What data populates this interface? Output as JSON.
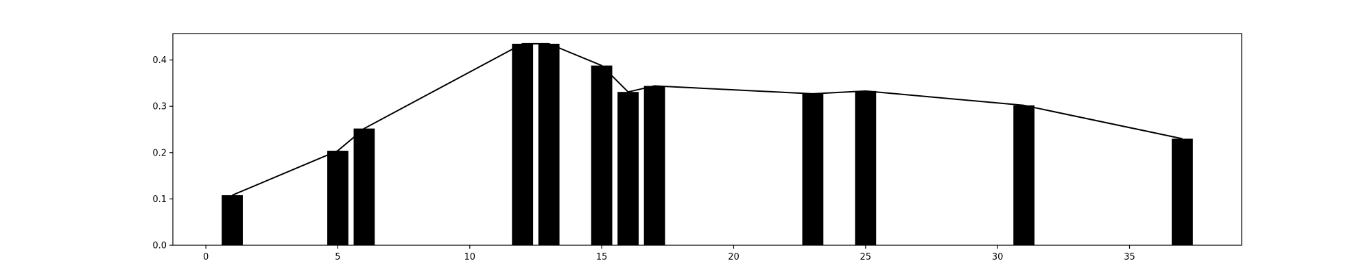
{
  "chart_data": {
    "type": "bar",
    "title": "",
    "xlabel": "",
    "ylabel": "",
    "xlim": [
      -1.25,
      39.25
    ],
    "ylim": [
      0,
      0.457
    ],
    "grid": false,
    "legend": "none",
    "bar_color": "#000000",
    "line_color": "#000000",
    "bar_width": 0.8,
    "x": [
      1,
      5,
      6,
      12,
      13,
      15,
      16,
      17,
      23,
      25,
      31,
      37
    ],
    "values": [
      0.108,
      0.204,
      0.252,
      0.435,
      0.435,
      0.388,
      0.331,
      0.344,
      0.327,
      0.333,
      0.302,
      0.23
    ],
    "line_x": [
      1,
      5,
      6,
      12,
      13,
      15,
      16,
      17,
      23,
      25,
      31,
      37
    ],
    "line_values": [
      0.108,
      0.204,
      0.252,
      0.435,
      0.435,
      0.388,
      0.331,
      0.344,
      0.327,
      0.333,
      0.302,
      0.23
    ],
    "x_ticks": [
      0,
      5,
      10,
      15,
      20,
      25,
      30,
      35
    ],
    "x_tick_labels": [
      "0",
      "5",
      "10",
      "15",
      "20",
      "25",
      "30",
      "35"
    ],
    "y_ticks": [
      0.0,
      0.1,
      0.2,
      0.3,
      0.4
    ],
    "y_tick_labels": [
      "0.0",
      "0.1",
      "0.2",
      "0.3",
      "0.4"
    ]
  }
}
